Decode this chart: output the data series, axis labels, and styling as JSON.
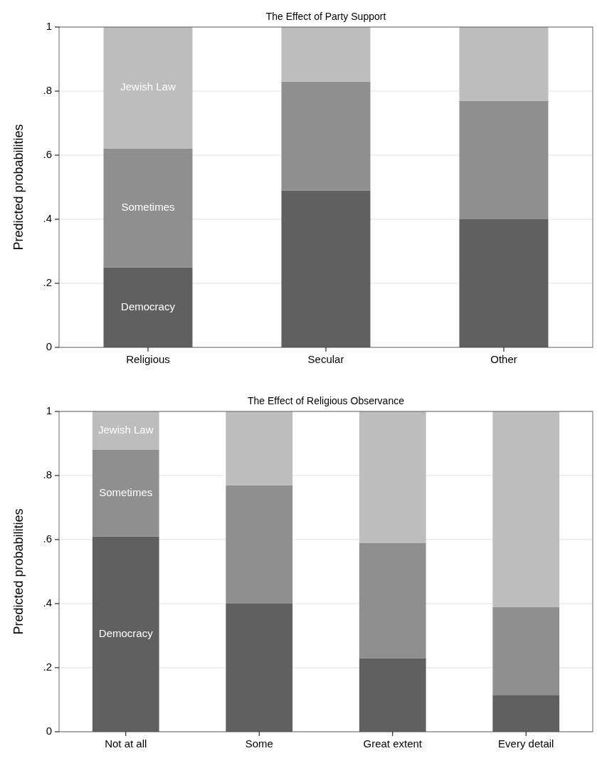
{
  "chart_data": [
    {
      "type": "bar",
      "title": "The Effect of Party Support",
      "ylabel": "Predicted probabilities",
      "stacked": true,
      "categories": [
        "Religious",
        "Secular",
        "Other"
      ],
      "series": [
        {
          "name": "Democracy",
          "color": "#606060",
          "values": [
            0.25,
            0.49,
            0.4
          ]
        },
        {
          "name": "Sometimes",
          "color": "#8f8f8f",
          "values": [
            0.37,
            0.34,
            0.37
          ]
        },
        {
          "name": "Jewish Law",
          "color": "#bdbdbd",
          "values": [
            0.38,
            0.17,
            0.23
          ]
        }
      ],
      "ylim": [
        0,
        1
      ],
      "yticks": [
        {
          "value": 0,
          "label": "0"
        },
        {
          "value": 0.2,
          "label": ".2"
        },
        {
          "value": 0.4,
          "label": ".4"
        },
        {
          "value": 0.6,
          "label": ".6"
        },
        {
          "value": 0.8,
          "label": ".8"
        },
        {
          "value": 1,
          "label": "1"
        }
      ],
      "grid": "y"
    },
    {
      "type": "bar",
      "title": "The Effect of Religious Observance",
      "ylabel": "Predicted probabilities",
      "stacked": true,
      "categories": [
        "Not at all",
        "Some",
        "Great extent",
        "Every detail"
      ],
      "series": [
        {
          "name": "Democracy",
          "color": "#606060",
          "values": [
            0.61,
            0.4,
            0.23,
            0.115
          ]
        },
        {
          "name": "Sometimes",
          "color": "#8f8f8f",
          "values": [
            0.27,
            0.37,
            0.36,
            0.275
          ]
        },
        {
          "name": "Jewish Law",
          "color": "#bdbdbd",
          "values": [
            0.12,
            0.23,
            0.41,
            0.61
          ]
        }
      ],
      "ylim": [
        0,
        1
      ],
      "yticks": [
        {
          "value": 0,
          "label": "0"
        },
        {
          "value": 0.2,
          "label": ".2"
        },
        {
          "value": 0.4,
          "label": ".4"
        },
        {
          "value": 0.6,
          "label": ".6"
        },
        {
          "value": 0.8,
          "label": ".8"
        },
        {
          "value": 1,
          "label": "1"
        }
      ],
      "grid": "y"
    }
  ]
}
